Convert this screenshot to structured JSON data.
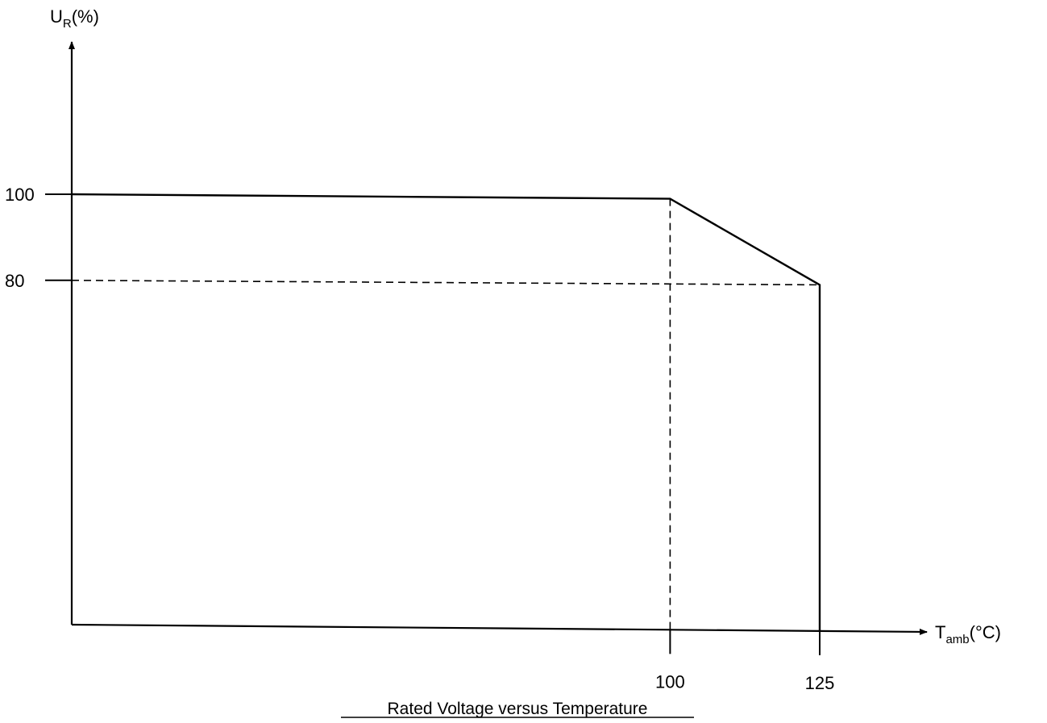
{
  "chart_data": {
    "type": "line",
    "title": "Rated Voltage versus Temperature",
    "ylabel": {
      "main": "U",
      "sub": "R",
      "unit": "(%)"
    },
    "xlabel": {
      "main": "T",
      "sub": "amb",
      "unit": "(°C)"
    },
    "x_ticks": [
      100,
      125
    ],
    "y_ticks": [
      100,
      80
    ],
    "series": [
      {
        "points": [
          {
            "x": 0,
            "y": 100
          },
          {
            "x": 100,
            "y": 100
          },
          {
            "x": 125,
            "y": 80
          },
          {
            "x": 125,
            "y": 0
          }
        ]
      }
    ],
    "reference_lines": [
      {
        "from": {
          "x": 100,
          "y": 100
        },
        "to": {
          "x": 100,
          "y": 0
        }
      },
      {
        "from": {
          "x": 0,
          "y": 80
        },
        "to": {
          "x": 125,
          "y": 80
        }
      }
    ],
    "grid": false,
    "legend": "none"
  }
}
